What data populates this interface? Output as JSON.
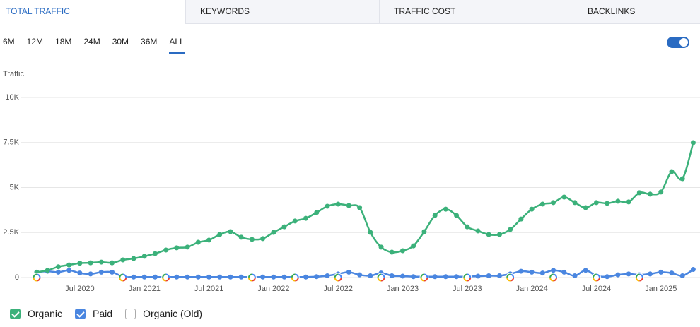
{
  "tabs": [
    "TOTAL TRAFFIC",
    "KEYWORDS",
    "TRAFFIC COST",
    "BACKLINKS"
  ],
  "ranges": [
    "6M",
    "12M",
    "18M",
    "24M",
    "30M",
    "36M",
    "ALL"
  ],
  "chart_data": {
    "type": "line",
    "y_label": "Traffic",
    "categories": [
      null,
      null,
      null,
      null,
      "Jul 2020",
      null,
      null,
      null,
      null,
      null,
      "Jan 2021",
      null,
      null,
      null,
      null,
      null,
      "Jul 2021",
      null,
      null,
      null,
      null,
      null,
      "Jan 2022",
      null,
      null,
      null,
      null,
      null,
      "Jul 2022",
      null,
      null,
      null,
      null,
      null,
      "Jan 2023",
      null,
      null,
      null,
      null,
      null,
      "Jul 2023",
      null,
      null,
      null,
      null,
      null,
      "Jan 2024",
      null,
      null,
      null,
      null,
      null,
      "Jul 2024",
      null,
      null,
      null,
      null,
      null,
      "Jan 2025",
      null,
      null,
      null
    ],
    "ylim": [
      0,
      10000
    ],
    "yticks": [
      0,
      {
        "value": 2500,
        "label": "2.5K"
      },
      {
        "value": 5000,
        "label": "5K"
      },
      {
        "value": 7500,
        "label": "7.5K"
      },
      {
        "value": 10000,
        "label": "10K"
      }
    ],
    "grid": true,
    "series": [
      {
        "name": "Organic",
        "color": "#3bb17a",
        "values": [
          300,
          400,
          600,
          700,
          800,
          820,
          860,
          820,
          980,
          1060,
          1180,
          1330,
          1530,
          1650,
          1690,
          1960,
          2080,
          2390,
          2550,
          2240,
          2120,
          2160,
          2510,
          2820,
          3140,
          3290,
          3610,
          3960,
          4080,
          4000,
          3880,
          2510,
          1690,
          1410,
          1490,
          1760,
          2550,
          3450,
          3800,
          3450,
          2820,
          2590,
          2390,
          2390,
          2670,
          3250,
          3800,
          4080,
          4160,
          4470,
          4160,
          3880,
          4160,
          4120,
          4240,
          4200,
          4710,
          4630,
          4750,
          5880,
          5490,
          7490
        ]
      },
      {
        "name": "Paid",
        "color": "#4a86e0",
        "values": [
          300,
          350,
          300,
          400,
          250,
          200,
          300,
          300,
          50,
          30,
          30,
          30,
          30,
          30,
          30,
          30,
          30,
          30,
          30,
          30,
          30,
          30,
          30,
          30,
          30,
          30,
          50,
          100,
          200,
          300,
          150,
          100,
          250,
          100,
          80,
          50,
          50,
          50,
          50,
          50,
          50,
          80,
          100,
          100,
          200,
          350,
          300,
          250,
          400,
          300,
          100,
          400,
          100,
          50,
          150,
          200,
          150,
          200,
          300,
          250,
          100,
          450
        ]
      },
      {
        "name": "Organic (Old)",
        "values": [
          null,
          null,
          null,
          null,
          null,
          null,
          null,
          null,
          null,
          null,
          null,
          null,
          null,
          null,
          null,
          null,
          null,
          null,
          null,
          null,
          null,
          null,
          null,
          null,
          null,
          null,
          null,
          null,
          null,
          null,
          null,
          null,
          null,
          null,
          null,
          null,
          null,
          null,
          null,
          null,
          null,
          null,
          null,
          null,
          null,
          null,
          null,
          null,
          null,
          null,
          null,
          null,
          null,
          null,
          null,
          null,
          null,
          null,
          null,
          null,
          null,
          null
        ]
      }
    ]
  }
}
